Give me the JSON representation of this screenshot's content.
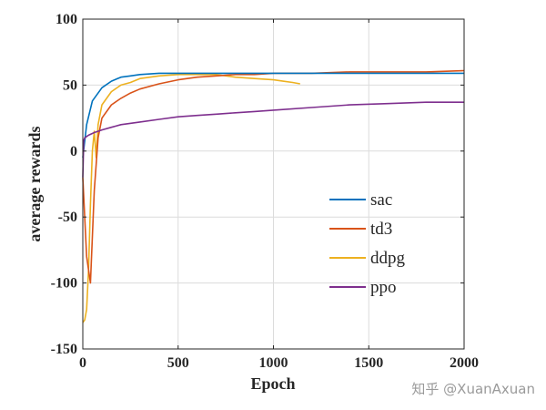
{
  "chart_data": {
    "type": "line",
    "title": "",
    "xlabel": "Epoch",
    "ylabel": "average rewards",
    "xlim": [
      0,
      2000
    ],
    "ylim": [
      -150,
      100
    ],
    "xticks": [
      0,
      500,
      1000,
      1500,
      2000
    ],
    "yticks": [
      -150,
      -100,
      -50,
      0,
      50,
      100
    ],
    "grid": true,
    "legend_position": "center-right",
    "series": [
      {
        "name": "sac",
        "color": "#0072BD",
        "x": [
          0,
          20,
          50,
          100,
          150,
          200,
          250,
          300,
          400,
          500,
          600,
          700,
          800,
          900,
          1000,
          1200,
          1400,
          1600,
          1800,
          2000
        ],
        "y": [
          -5,
          20,
          38,
          48,
          53,
          56,
          57,
          58,
          59,
          59,
          59,
          59,
          59,
          59,
          59,
          59,
          59,
          59,
          59,
          59
        ]
      },
      {
        "name": "td3",
        "color": "#D95319",
        "x": [
          0,
          20,
          40,
          60,
          80,
          100,
          150,
          200,
          250,
          300,
          400,
          500,
          600,
          700,
          800,
          900,
          1000,
          1200,
          1400,
          1600,
          1800,
          2000
        ],
        "y": [
          -20,
          -80,
          -100,
          -30,
          10,
          25,
          35,
          40,
          44,
          47,
          51,
          54,
          56,
          57,
          58,
          58,
          59,
          59,
          60,
          60,
          60,
          61
        ]
      },
      {
        "name": "ddpg",
        "color": "#EDB120",
        "x": [
          0,
          10,
          20,
          30,
          40,
          50,
          60,
          70,
          80,
          100,
          150,
          200,
          250,
          300,
          400,
          500,
          600,
          700,
          800,
          900,
          1000,
          1050,
          1100,
          1140
        ],
        "y": [
          -130,
          -128,
          -120,
          -90,
          -40,
          0,
          15,
          -5,
          20,
          35,
          45,
          50,
          52,
          55,
          57,
          58,
          58,
          58,
          56,
          55,
          54,
          53,
          52,
          51
        ]
      },
      {
        "name": "ppo",
        "color": "#7E2F8E",
        "x": [
          0,
          5,
          10,
          30,
          60,
          100,
          150,
          200,
          300,
          400,
          500,
          600,
          700,
          800,
          900,
          1000,
          1200,
          1400,
          1600,
          1800,
          2000
        ],
        "y": [
          -20,
          8,
          10,
          12,
          14,
          16,
          18,
          20,
          22,
          24,
          26,
          27,
          28,
          29,
          30,
          31,
          33,
          35,
          36,
          37,
          37
        ]
      }
    ]
  },
  "watermark": "知乎 @XuanAxuan"
}
